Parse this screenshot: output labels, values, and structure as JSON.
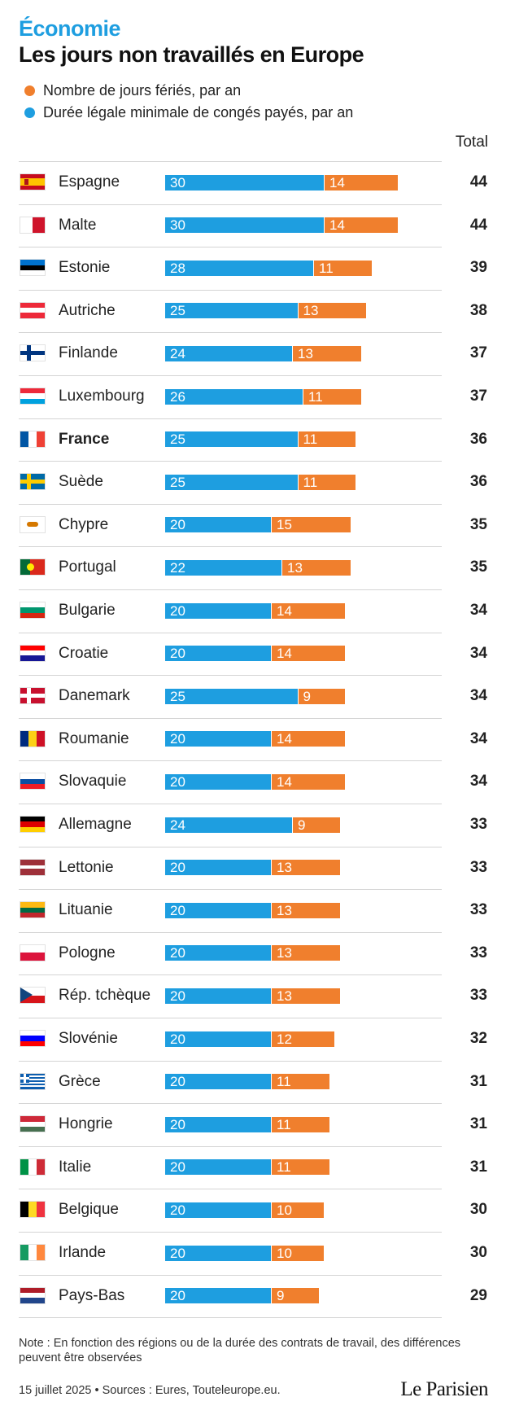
{
  "header": {
    "kicker": "Économie",
    "title": "Les jours non travaillés en Europe"
  },
  "legend": [
    {
      "label": "Nombre de jours fériés, par an",
      "color": "#f07f2d"
    },
    {
      "label": "Durée légale minimale de congés payés, par an",
      "color": "#1e9ee0"
    }
  ],
  "total_header": "Total",
  "colors": {
    "conges": "#1e9ee0",
    "feries": "#f07f2d",
    "accent": "#1e9ee0"
  },
  "chart_data": {
    "type": "bar",
    "orientation": "horizontal",
    "stacked": true,
    "categories": [
      "Espagne",
      "Malte",
      "Estonie",
      "Autriche",
      "Finlande",
      "Luxembourg",
      "France",
      "Suède",
      "Chypre",
      "Portugal",
      "Bulgarie",
      "Croatie",
      "Danemark",
      "Roumanie",
      "Slovaquie",
      "Allemagne",
      "Lettonie",
      "Lituanie",
      "Pologne",
      "Rép. tchèque",
      "Slovénie",
      "Grèce",
      "Hongrie",
      "Italie",
      "Belgique",
      "Irlande",
      "Pays-Bas"
    ],
    "highlight": "France",
    "series": [
      {
        "name": "Durée légale minimale de congés payés, par an",
        "color": "#1e9ee0",
        "values": [
          30,
          30,
          28,
          25,
          24,
          26,
          25,
          25,
          20,
          22,
          20,
          20,
          25,
          20,
          20,
          24,
          20,
          20,
          20,
          20,
          20,
          20,
          20,
          20,
          20,
          20,
          20
        ]
      },
      {
        "name": "Nombre de jours fériés, par an",
        "color": "#f07f2d",
        "values": [
          14,
          14,
          11,
          13,
          13,
          11,
          11,
          11,
          15,
          13,
          14,
          14,
          9,
          14,
          14,
          9,
          13,
          13,
          13,
          13,
          12,
          11,
          11,
          11,
          10,
          10,
          9
        ]
      }
    ],
    "totals": [
      44,
      44,
      39,
      38,
      37,
      37,
      36,
      36,
      35,
      35,
      34,
      34,
      34,
      34,
      34,
      33,
      33,
      33,
      33,
      33,
      32,
      31,
      31,
      31,
      30,
      30,
      29
    ],
    "xlim": [
      0,
      44
    ]
  },
  "footer": {
    "note": "Note : En fonction des régions ou de la durée des contrats de travail, des différences peuvent être observées",
    "source": "15 juillet 2025 • Sources : Eures, Touteleurope.eu.",
    "logo": "Le Parisien"
  }
}
